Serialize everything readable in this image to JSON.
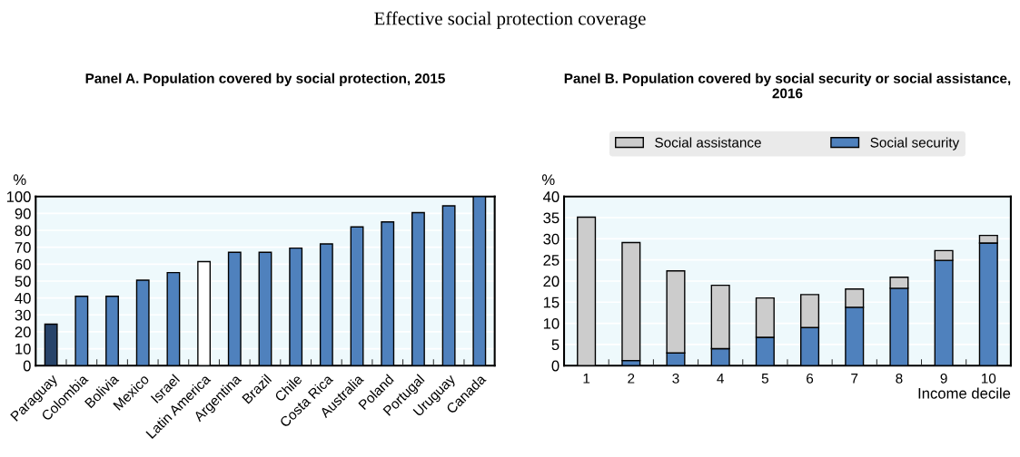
{
  "chart_data": [
    {
      "type": "bar",
      "title": "Effective social protection coverage",
      "subtitle": "Panel A. Population covered by social protection, 2015",
      "ylabel": "%",
      "categories": [
        "Paraguay",
        "Colombia",
        "Bolivia",
        "Mexico",
        "Israel",
        "Latin America",
        "Argentina",
        "Brazil",
        "Chile",
        "Costa Rica",
        "Australia",
        "Poland",
        "Portugal",
        "Uruguay",
        "Canada"
      ],
      "values": [
        24.5,
        41,
        41,
        50.5,
        55,
        61.5,
        67,
        67,
        69.5,
        72,
        82,
        85,
        90.5,
        94.5,
        100
      ],
      "colors": [
        "#27446a",
        "#4f81bd",
        "#4f81bd",
        "#4f81bd",
        "#4f81bd",
        "#ffffff",
        "#4f81bd",
        "#4f81bd",
        "#4f81bd",
        "#4f81bd",
        "#4f81bd",
        "#4f81bd",
        "#4f81bd",
        "#4f81bd",
        "#4f81bd"
      ],
      "ylim": [
        0,
        100
      ],
      "yticks": [
        0,
        10,
        20,
        30,
        40,
        50,
        60,
        70,
        80,
        90,
        100
      ],
      "grid": "y"
    },
    {
      "type": "bar",
      "subtitle": "Panel B. Population covered by social security or social assistance, 2016",
      "ylabel": "%",
      "xlabel": "Income decile",
      "stacked": true,
      "categories": [
        "1",
        "2",
        "3",
        "4",
        "5",
        "6",
        "7",
        "8",
        "9",
        "10"
      ],
      "series": [
        {
          "name": "Social security",
          "color": "#4f81bd",
          "values": [
            null,
            1.2,
            3,
            4,
            6.7,
            9,
            13.8,
            18.3,
            24.9,
            29
          ]
        },
        {
          "name": "Social assistance",
          "color": "#cccccc",
          "values": [
            35.1,
            27.9,
            19.4,
            15,
            9.3,
            7.8,
            4.3,
            2.6,
            2.3,
            1.8
          ]
        }
      ],
      "ylim": [
        0,
        40
      ],
      "yticks": [
        0,
        5,
        10,
        15,
        20,
        25,
        30,
        35,
        40
      ],
      "grid": "y",
      "legend": "top"
    }
  ]
}
